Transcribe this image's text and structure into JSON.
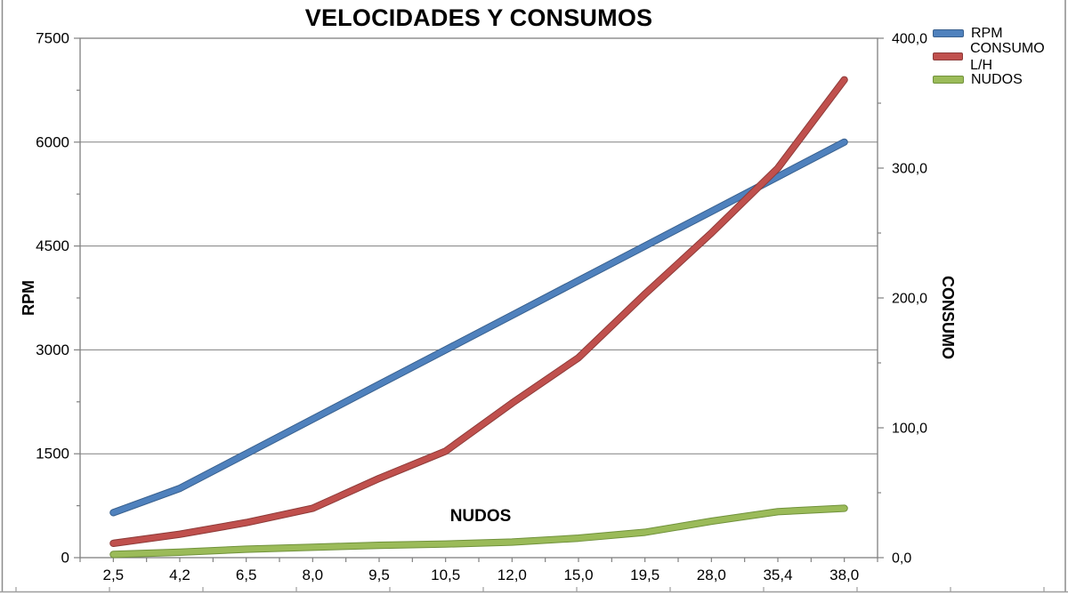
{
  "title": "VELOCIDADES Y CONSUMOS",
  "annotation": "NUDOS",
  "legend": {
    "items": [
      {
        "label": "RPM",
        "color": "#4F81BD",
        "edge": "#39618F"
      },
      {
        "label": "CONSUMO L/H",
        "color": "#C0504D",
        "edge": "#8E3B39"
      },
      {
        "label": "NUDOS",
        "color": "#9BBB59",
        "edge": "#71923C"
      }
    ]
  },
  "left_axis": {
    "title": "RPM",
    "tick_values": [
      0,
      1500,
      3000,
      4500,
      6000,
      7500
    ],
    "tick_labels": [
      "0",
      "1500",
      "3000",
      "4500",
      "6000",
      "7500"
    ]
  },
  "right_axis": {
    "title": "CONSUMO",
    "tick_values": [
      0,
      100,
      200,
      300,
      400
    ],
    "tick_labels": [
      "0,0",
      "100,0",
      "200,0",
      "300,0",
      "400,0"
    ]
  },
  "x_axis": {
    "labels": [
      "2,5",
      "4,2",
      "6,5",
      "8,0",
      "9,5",
      "10,5",
      "12,0",
      "15,0",
      "19,5",
      "28,0",
      "35,4",
      "38,0"
    ]
  },
  "chart_data": {
    "type": "line",
    "title": "VELOCIDADES Y CONSUMOS",
    "categories": [
      2.5,
      4.2,
      6.5,
      8.0,
      9.5,
      10.5,
      12.0,
      15.0,
      19.5,
      28.0,
      35.4,
      38.0
    ],
    "category_labels": [
      "2,5",
      "4,2",
      "6,5",
      "8,0",
      "9,5",
      "10,5",
      "12,0",
      "15,0",
      "19,5",
      "28,0",
      "35,4",
      "38,0"
    ],
    "series": [
      {
        "name": "RPM",
        "axis": "left",
        "color": "#4F81BD",
        "values": [
          650,
          1000,
          1500,
          2000,
          2500,
          3000,
          3500,
          4000,
          4500,
          5000,
          5500,
          6000
        ]
      },
      {
        "name": "CONSUMO L/H",
        "axis": "right",
        "color": "#C0504D",
        "values": [
          11,
          18,
          27,
          38,
          61,
          82,
          119,
          154,
          203,
          250,
          300,
          368
        ]
      },
      {
        "name": "NUDOS",
        "axis": "right",
        "color": "#9BBB59",
        "values": [
          2.5,
          4.2,
          6.5,
          8.0,
          9.5,
          10.5,
          12.0,
          15.0,
          19.5,
          28.0,
          35.4,
          38.0
        ]
      }
    ],
    "left_ylabel": "RPM",
    "right_ylabel": "CONSUMO",
    "left_ylim": [
      0,
      7500
    ],
    "right_ylim": [
      0,
      400
    ],
    "grid": true,
    "legend_position": "top-right",
    "annotation": "NUDOS"
  }
}
